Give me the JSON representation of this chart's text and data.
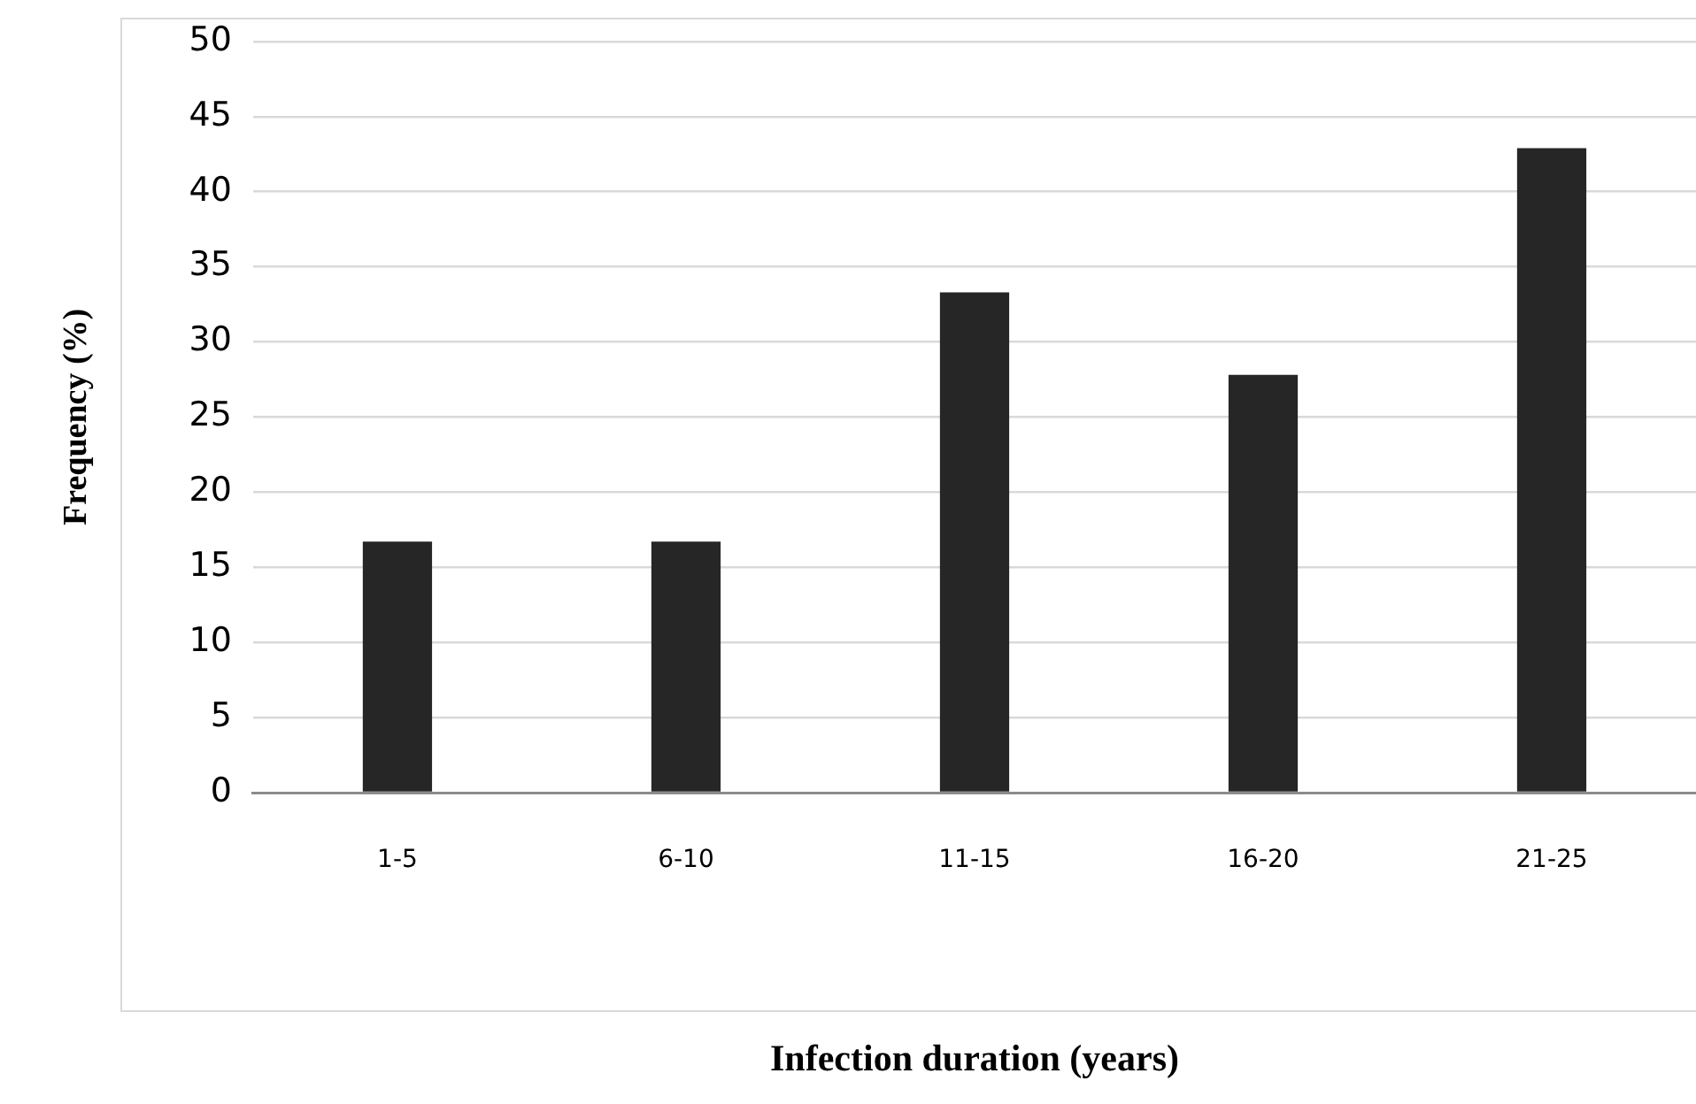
{
  "chart_data": {
    "type": "bar",
    "xlabel": "Infection duration (years)",
    "ylabel": "Frequency (%)",
    "categories": [
      "1-5",
      "6-10",
      "11-15",
      "16-20",
      "21-25"
    ],
    "values": [
      16.7,
      16.7,
      33.3,
      27.8,
      42.9
    ],
    "color": "#262626",
    "ylim": [
      0,
      50
    ],
    "yticks": [
      0,
      5,
      10,
      15,
      20,
      25,
      30,
      35,
      40,
      45,
      50
    ],
    "grid": "y",
    "legend": false
  }
}
